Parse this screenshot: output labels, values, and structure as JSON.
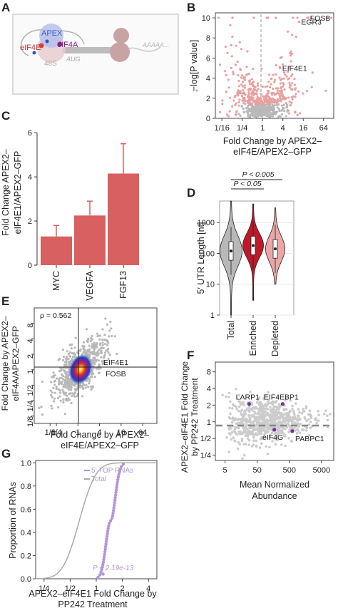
{
  "panels": [
    "A",
    "B",
    "C",
    "D",
    "E",
    "F",
    "G"
  ],
  "colors": {
    "salmon": "#e8a0a0",
    "bar": "#d86060",
    "red": "#c01828",
    "pink": "#eba7a7",
    "grey": "#b8b8b8",
    "purple": "#7a2d9e",
    "lilac": "#b595d8"
  },
  "schematic": {
    "labels": [
      "APEX",
      "eIF4E",
      "eIF4A",
      "48S",
      "AUG",
      "AAAAA..."
    ]
  },
  "chart_data": [
    {
      "panel": "B",
      "type": "scatter",
      "title": "",
      "xlabel": "Fold Change by APEX2–eIF4E/APEX2–GFP",
      "ylabel": "−log[P value]",
      "xticks": [
        "1/16",
        "1/4",
        "1",
        "4",
        "16",
        "64"
      ],
      "yticks": [
        "0",
        "2",
        "4",
        "6",
        "8",
        "10"
      ],
      "xlim": [
        0.04,
        128
      ],
      "ylim": [
        0,
        10.5
      ],
      "xscale": "log2",
      "annotations": [
        {
          "text": "FOSB",
          "x": 22,
          "y": 10
        },
        {
          "text": "EGR3",
          "x": 12,
          "y": 9.6
        },
        {
          "text": "EIF4E1",
          "x": 3.3,
          "y": 5.0
        }
      ]
    },
    {
      "panel": "C",
      "type": "bar",
      "title": "",
      "ylabel": "Fold Change APEX2–eIF4E1/APEX2–GFP",
      "categories": [
        "MYC",
        "VEGFA",
        "FGF13"
      ],
      "values": [
        1.3,
        2.25,
        4.15
      ],
      "errors": [
        0.5,
        0.65,
        1.35
      ],
      "yticks": [
        "0",
        "2",
        "4",
        "6"
      ],
      "ylim": [
        0,
        6.2
      ]
    },
    {
      "panel": "D",
      "type": "violin",
      "title": "",
      "ylabel": "5′ UTR Length [nt]",
      "categories": [
        "Total",
        "Enriched",
        "Depleted"
      ],
      "medians": [
        120,
        180,
        140
      ],
      "yticks": [
        "1",
        "10",
        "100",
        "1000"
      ],
      "ylim": [
        1,
        5000
      ],
      "yscale": "log10",
      "annotations": [
        {
          "text": "P < 0.05"
        },
        {
          "text": "P < 0.005"
        }
      ]
    },
    {
      "panel": "E",
      "type": "scatter",
      "title": "",
      "xlabel": "Fold Change by APEX2–eIF4E/APEX2–GFP",
      "ylabel": "Fold Change by APEX2–eIF4A/APEX2–GFP",
      "xticks": [
        "1/6",
        "1/4",
        "1",
        "4",
        "16",
        "64"
      ],
      "yticks": [
        "1/8",
        "1/4",
        "1/2",
        "1",
        "2",
        "4",
        "8"
      ],
      "xlim": [
        0.06,
        160
      ],
      "ylim": [
        0.09,
        16
      ],
      "xscale": "log2",
      "yscale": "log2",
      "annotations": [
        {
          "text": "ρ = 0.562"
        },
        {
          "text": "EIF4E1"
        },
        {
          "text": "FOSB"
        }
      ]
    },
    {
      "panel": "F",
      "type": "scatter",
      "title": "",
      "xlabel": "Mean Normalized Abundance",
      "ylabel": "APEX2–eIF4E1 Fold Change by PP242 Treatment",
      "xticks": [
        "5",
        "50",
        "500",
        "5000"
      ],
      "yticks": [
        "1/4",
        "1/2",
        "1",
        "2",
        "4",
        "8"
      ],
      "xscale": "log10",
      "yscale": "log2",
      "xlim": [
        2.5,
        12000
      ],
      "ylim": [
        0.2,
        12
      ],
      "highlighted": [
        {
          "text": "LARP1",
          "x": 28,
          "y": 2.1
        },
        {
          "text": "EIF4EBP1",
          "x": 310,
          "y": 2.1
        },
        {
          "text": "eIF4G",
          "x": 170,
          "y": 0.72
        },
        {
          "text": "PABPC1",
          "x": 620,
          "y": 0.68
        }
      ]
    },
    {
      "panel": "G",
      "type": "line",
      "title": "",
      "xlabel": "APEX2–eIF4E1 Fold Change by PP242 Treatment",
      "ylabel": "Proportion of RNAs",
      "xticks": [
        "1/4",
        "1/2",
        "1",
        "2",
        "4"
      ],
      "yticks": [
        "0.0",
        "0.2",
        "0.4",
        "0.6",
        "0.8",
        "1.0"
      ],
      "xscale": "log2",
      "xlim": [
        0.2,
        5
      ],
      "ylim": [
        0,
        1.02
      ],
      "series": [
        {
          "name": "5′ TOP RNAs"
        },
        {
          "name": "Total"
        }
      ],
      "annotations": [
        {
          "text": "P < 2.19e-13"
        }
      ]
    }
  ]
}
